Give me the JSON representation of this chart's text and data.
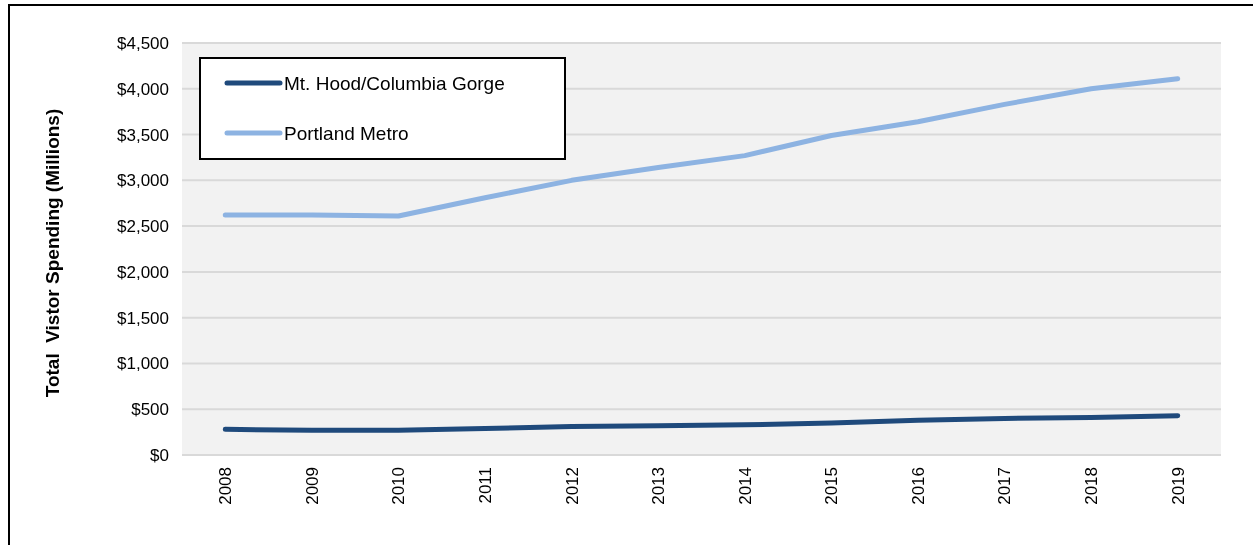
{
  "chart_data": {
    "type": "line",
    "ylabel": "Total  Vistor Spending (Millions)",
    "categories": [
      "2008",
      "2009",
      "2010",
      "2011",
      "2012",
      "2013",
      "2014",
      "2015",
      "2016",
      "2017",
      "2018",
      "2019"
    ],
    "series": [
      {
        "name": "Mt. Hood/Columbia Gorge",
        "color": "#1f4a7c",
        "values": [
          280,
          270,
          270,
          290,
          310,
          320,
          330,
          350,
          380,
          400,
          410,
          430
        ]
      },
      {
        "name": "Portland Metro",
        "color": "#8db3e2",
        "values": [
          2620,
          2620,
          2610,
          2810,
          3000,
          3140,
          3270,
          3490,
          3640,
          3830,
          4000,
          4110
        ]
      }
    ],
    "ylim": [
      0,
      4500
    ],
    "yticks": [
      {
        "value": 0,
        "label": "$0"
      },
      {
        "value": 500,
        "label": "$500"
      },
      {
        "value": 1000,
        "label": "$1,000"
      },
      {
        "value": 1500,
        "label": "$1,500"
      },
      {
        "value": 2000,
        "label": "$2,000"
      },
      {
        "value": 2500,
        "label": "$2,500"
      },
      {
        "value": 3000,
        "label": "$3,000"
      },
      {
        "value": 3500,
        "label": "$3,500"
      },
      {
        "value": 4000,
        "label": "$4,000"
      },
      {
        "value": 4500,
        "label": "$4,500"
      }
    ],
    "grid": "y",
    "legend": "top left",
    "marker": "none",
    "line_style": "solid"
  }
}
